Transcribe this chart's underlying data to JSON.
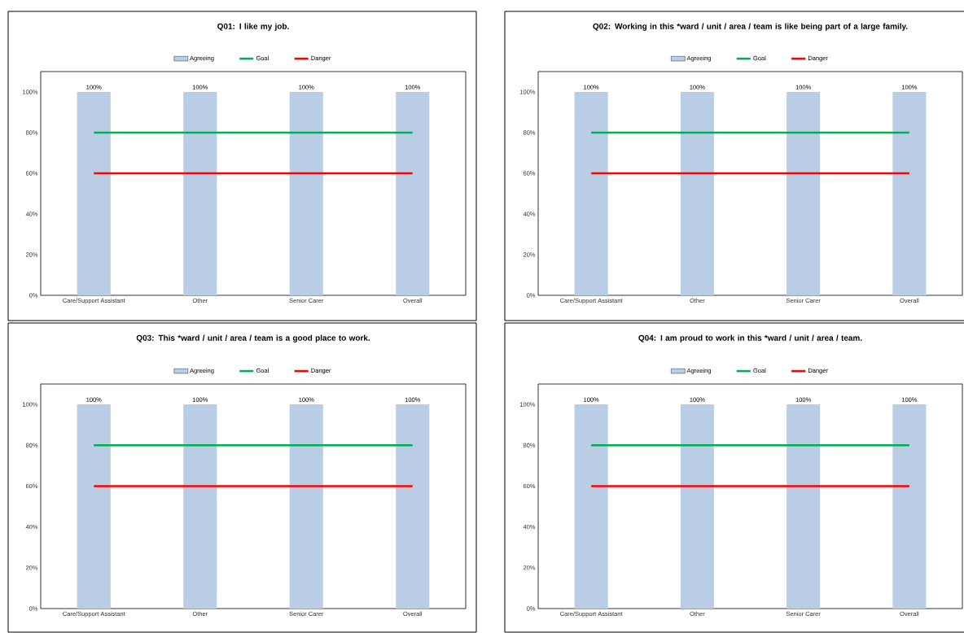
{
  "chart_data": [
    {
      "type": "bar",
      "title": "Q01: I like my job.",
      "categories": [
        "Care/Support Assistant",
        "Other",
        "Senior Carer",
        "Overall"
      ],
      "series": [
        {
          "name": "Agreeing",
          "color": "#b9cde5",
          "values": [
            100,
            100,
            100,
            100
          ],
          "value_labels": [
            "100%",
            "100%",
            "100%",
            "100%"
          ]
        },
        {
          "name": "Goal",
          "type": "line",
          "color": "#00b050",
          "values": [
            80,
            80,
            80,
            80
          ]
        },
        {
          "name": "Danger",
          "type": "line",
          "color": "#ff0000",
          "values": [
            60,
            60,
            60,
            60
          ]
        }
      ],
      "ylim": [
        0,
        110
      ],
      "yticks": [
        {
          "value": 0,
          "label": "0%"
        },
        {
          "value": 20,
          "label": "20%"
        },
        {
          "value": 40,
          "label": "40%"
        },
        {
          "value": 60,
          "label": "60%"
        },
        {
          "value": 80,
          "label": "80%"
        },
        {
          "value": 100,
          "label": "100%"
        }
      ],
      "legend": "top"
    },
    {
      "type": "bar",
      "title": "Q02: Working in this *ward / unit / area / team is like being part of a large family.",
      "categories": [
        "Care/Support Assistant",
        "Other",
        "Senior Carer",
        "Overall"
      ],
      "series": [
        {
          "name": "Agreeing",
          "color": "#b9cde5",
          "values": [
            100,
            100,
            100,
            100
          ],
          "value_labels": [
            "100%",
            "100%",
            "100%",
            "100%"
          ]
        },
        {
          "name": "Goal",
          "type": "line",
          "color": "#00b050",
          "values": [
            80,
            80,
            80,
            80
          ]
        },
        {
          "name": "Danger",
          "type": "line",
          "color": "#ff0000",
          "values": [
            60,
            60,
            60,
            60
          ]
        }
      ],
      "ylim": [
        0,
        110
      ],
      "yticks": [
        {
          "value": 0,
          "label": "0%"
        },
        {
          "value": 20,
          "label": "20%"
        },
        {
          "value": 40,
          "label": "40%"
        },
        {
          "value": 60,
          "label": "60%"
        },
        {
          "value": 80,
          "label": "80%"
        },
        {
          "value": 100,
          "label": "100%"
        }
      ],
      "legend": "top"
    },
    {
      "type": "bar",
      "title": "Q03: This *ward / unit / area / team is a good place to work.",
      "categories": [
        "Care/Support Assistant",
        "Other",
        "Senior Carer",
        "Overall"
      ],
      "series": [
        {
          "name": "Agreeing",
          "color": "#b9cde5",
          "values": [
            100,
            100,
            100,
            100
          ],
          "value_labels": [
            "100%",
            "100%",
            "100%",
            "100%"
          ]
        },
        {
          "name": "Goal",
          "type": "line",
          "color": "#00b050",
          "values": [
            80,
            80,
            80,
            80
          ]
        },
        {
          "name": "Danger",
          "type": "line",
          "color": "#ff0000",
          "values": [
            60,
            60,
            60,
            60
          ]
        }
      ],
      "ylim": [
        0,
        110
      ],
      "yticks": [
        {
          "value": 0,
          "label": "0%"
        },
        {
          "value": 20,
          "label": "20%"
        },
        {
          "value": 40,
          "label": "40%"
        },
        {
          "value": 60,
          "label": "60%"
        },
        {
          "value": 80,
          "label": "80%"
        },
        {
          "value": 100,
          "label": "100%"
        }
      ],
      "legend": "top"
    },
    {
      "type": "bar",
      "title": "Q04: I am proud to work in this *ward / unit / area / team.",
      "categories": [
        "Care/Support Assistant",
        "Other",
        "Senior Carer",
        "Overall"
      ],
      "series": [
        {
          "name": "Agreeing",
          "color": "#b9cde5",
          "values": [
            100,
            100,
            100,
            100
          ],
          "value_labels": [
            "100%",
            "100%",
            "100%",
            "100%"
          ]
        },
        {
          "name": "Goal",
          "type": "line",
          "color": "#00b050",
          "values": [
            80,
            80,
            80,
            80
          ]
        },
        {
          "name": "Danger",
          "type": "line",
          "color": "#ff0000",
          "values": [
            60,
            60,
            60,
            60
          ]
        }
      ],
      "ylim": [
        0,
        110
      ],
      "yticks": [
        {
          "value": 0,
          "label": "0%"
        },
        {
          "value": 20,
          "label": "20%"
        },
        {
          "value": 40,
          "label": "40%"
        },
        {
          "value": 60,
          "label": "60%"
        },
        {
          "value": 80,
          "label": "80%"
        },
        {
          "value": 100,
          "label": "100%"
        }
      ],
      "legend": "top"
    }
  ]
}
